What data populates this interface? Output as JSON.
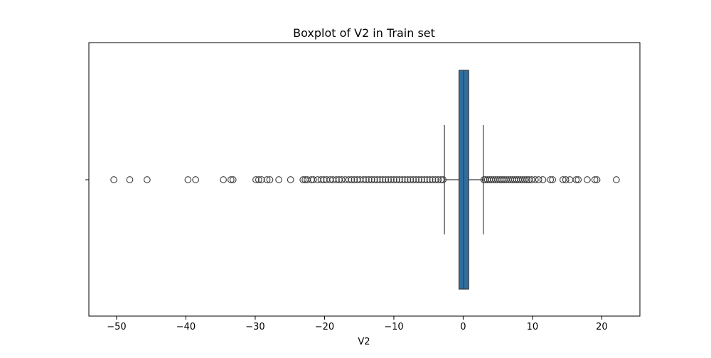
{
  "chart_data": {
    "type": "boxplot",
    "title": "Boxplot of V2 in Train set",
    "xlabel": "V2",
    "ylabel": "",
    "xlim": [
      -54,
      25.5
    ],
    "x_ticks": [
      -50,
      -40,
      -30,
      -20,
      -10,
      0,
      10,
      20
    ],
    "grid": false,
    "legend": "none",
    "colors": {
      "box_fill": "#2f6f9f",
      "line": "#3c3c3c",
      "outlier_edge": "#3c3c3c"
    },
    "box": {
      "q1": -0.6,
      "median": 0.07,
      "q3": 0.8,
      "whisker_low": -2.7,
      "whisker_high": 2.9
    },
    "outliers": [
      -50.4,
      -48.1,
      -45.6,
      -39.7,
      -38.6,
      -34.6,
      -33.5,
      -33.2,
      -29.9,
      -29.5,
      -29.1,
      -28.3,
      -27.9,
      -26.6,
      -24.9,
      -23.1,
      -22.8,
      -22.5,
      -21.9,
      -21.6,
      -21.0,
      -20.5,
      -20.1,
      -19.7,
      -19.2,
      -18.8,
      -18.3,
      -17.9,
      -17.5,
      -17.0,
      -16.5,
      -16.1,
      -15.7,
      -15.3,
      -14.9,
      -14.4,
      -14.0,
      -13.6,
      -13.2,
      -12.8,
      -12.4,
      -12.0,
      -11.6,
      -11.2,
      -10.8,
      -10.4,
      -10.0,
      -9.6,
      -9.2,
      -8.8,
      -8.4,
      -8.0,
      -7.6,
      -7.2,
      -6.8,
      -6.4,
      -6.0,
      -5.6,
      -5.2,
      -4.8,
      -4.4,
      -4.0,
      -3.6,
      -3.2,
      -2.9,
      3.0,
      3.2,
      3.5,
      3.8,
      4.1,
      4.4,
      4.7,
      5.0,
      5.3,
      5.6,
      5.9,
      6.2,
      6.5,
      6.8,
      7.1,
      7.4,
      7.7,
      8.0,
      8.3,
      8.6,
      8.9,
      9.2,
      9.5,
      9.9,
      10.4,
      10.9,
      11.5,
      12.6,
      12.9,
      14.4,
      14.8,
      15.4,
      16.3,
      16.6,
      17.9,
      19.0,
      19.3,
      22.1
    ]
  }
}
